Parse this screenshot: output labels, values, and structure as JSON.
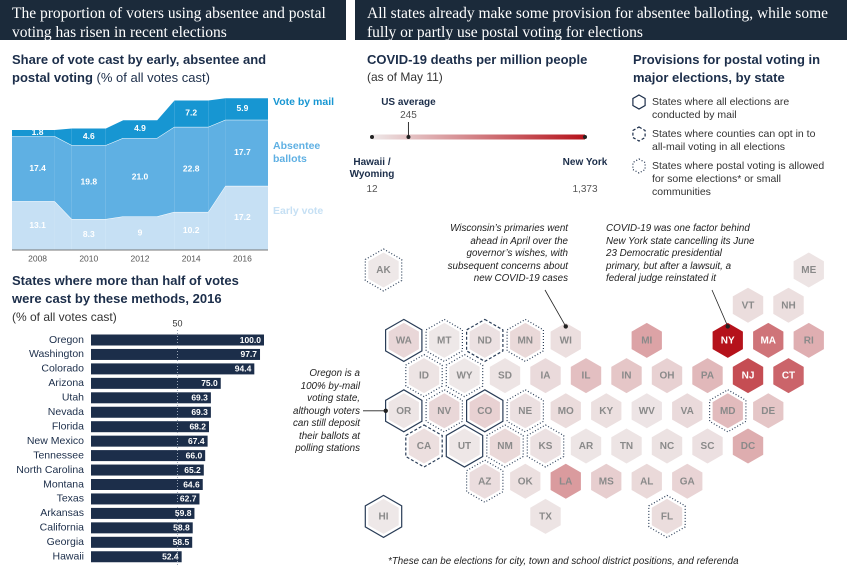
{
  "headers": [
    "The proportion of voters using absentee and postal voting has risen in recent elections",
    "All states already make some provision for absentee balloting, while some fully or partly use postal voting for elections"
  ],
  "chart_data": [
    {
      "type": "area",
      "stacked": true,
      "title": "Share of vote cast by early, absentee and postal voting",
      "subtitle": "(% of all votes cast)",
      "categories": [
        "2008",
        "2010",
        "2012",
        "2014",
        "2016"
      ],
      "ylim": [
        0,
        41
      ],
      "series": [
        {
          "name": "Vote by mail",
          "color": "#1796d2",
          "values": [
            1.8,
            4.6,
            4.9,
            7.2,
            5.9
          ]
        },
        {
          "name": "Absentee ballots",
          "color": "#5fb0e3",
          "values": [
            17.4,
            19.8,
            21.0,
            22.8,
            17.7
          ],
          "value_labels": [
            "17.4",
            "19.8",
            "21.0",
            "22.8",
            "17.7"
          ]
        },
        {
          "name": "Early vote",
          "color": "#c6e0f4",
          "values": [
            13.1,
            8.3,
            9.0,
            10.2,
            17.2
          ]
        }
      ]
    },
    {
      "type": "hbar",
      "title": "States where more than half of votes were cast by these methods, 2016",
      "subtitle": "(% of all votes cast)",
      "categories": [
        "Oregon",
        "Washington",
        "Colorado",
        "Arizona",
        "Utah",
        "Nevada",
        "Florida",
        "New Mexico",
        "Tennessee",
        "North Carolina",
        "Montana",
        "Texas",
        "Arkansas",
        "California",
        "Georgia",
        "Hawaii"
      ],
      "values": [
        100.0,
        97.7,
        94.4,
        75.0,
        69.3,
        69.3,
        68.2,
        67.4,
        66.0,
        65.2,
        64.6,
        62.7,
        59.8,
        58.8,
        58.5,
        52.4
      ],
      "value_labels": [
        "100.0",
        "97.7",
        "94.4",
        "75.0",
        "69.3",
        "69.3",
        "68.2",
        "67.4",
        "66.0",
        "65.2",
        "64.6",
        "62.7",
        "59.8",
        "58.8",
        "58.5",
        "52.4"
      ],
      "color": "#1c2e4a",
      "xlim": [
        0,
        100
      ],
      "xticks": [
        50
      ]
    },
    {
      "type": "map",
      "title": "COVID-19 deaths per million people",
      "subtitle": "(as of May 11)",
      "scale": {
        "min": {
          "label": "Hawaii / Wyoming",
          "value": 12
        },
        "avg": {
          "label": "US average",
          "value": 245
        },
        "max": {
          "label": "New York",
          "value": 1373,
          "value_label": "1,373"
        }
      },
      "color_low": "#eee8e8",
      "color_high": "#b5121b",
      "legend_title": "Provisions for postal voting in major elections, by state",
      "legend": [
        "States where all elections are conducted by mail",
        "States where counties can opt in to all-mail voting in all elections",
        "States where postal voting is allowed for some elections* or small communities"
      ],
      "states": [
        "AK",
        "ME",
        "VT",
        "NH",
        "WA",
        "MT",
        "ND",
        "MN",
        "WI",
        "MI",
        "NY",
        "MA",
        "RI",
        "ID",
        "WY",
        "SD",
        "IA",
        "IL",
        "IN",
        "OH",
        "PA",
        "NJ",
        "CT",
        "OR",
        "NV",
        "CO",
        "NE",
        "MO",
        "KY",
        "WV",
        "VA",
        "MD",
        "DE",
        "CA",
        "UT",
        "NM",
        "KS",
        "AR",
        "TN",
        "NC",
        "SC",
        "DC",
        "AZ",
        "OK",
        "LA",
        "MS",
        "AL",
        "GA",
        "HI",
        "TX",
        "FL"
      ],
      "values": [
        12,
        40,
        85,
        70,
        120,
        15,
        55,
        110,
        70,
        450,
        1373,
        750,
        380,
        40,
        12,
        40,
        100,
        270,
        230,
        160,
        320,
        1000,
        850,
        30,
        120,
        160,
        60,
        90,
        65,
        35,
        100,
        300,
        230,
        70,
        20,
        110,
        55,
        30,
        40,
        50,
        60,
        390,
        80,
        65,
        500,
        180,
        110,
        140,
        12,
        40,
        85
      ],
      "provision": [
        2,
        null,
        null,
        null,
        0,
        2,
        1,
        2,
        null,
        null,
        null,
        null,
        null,
        2,
        2,
        null,
        null,
        null,
        null,
        null,
        null,
        null,
        null,
        0,
        2,
        0,
        2,
        null,
        null,
        null,
        null,
        2,
        null,
        1,
        0,
        2,
        2,
        null,
        null,
        null,
        null,
        null,
        2,
        null,
        null,
        null,
        null,
        null,
        0,
        null,
        2
      ],
      "annotations": [
        "Wisconsin’s primaries went ahead in April over the governor’s wishes, with subsequent concerns about new COVID-19 cases",
        "COVID-19 was one factor behind New York state cancelling its June 23 Democratic presidential primary, but after a lawsuit, a federal judge reinstated it",
        "Oregon is a 100% by-mail voting state, although voters can still deposit their ballots at polling stations"
      ],
      "footnote": "*These can be elections for city, town and school district positions, and referenda"
    }
  ]
}
